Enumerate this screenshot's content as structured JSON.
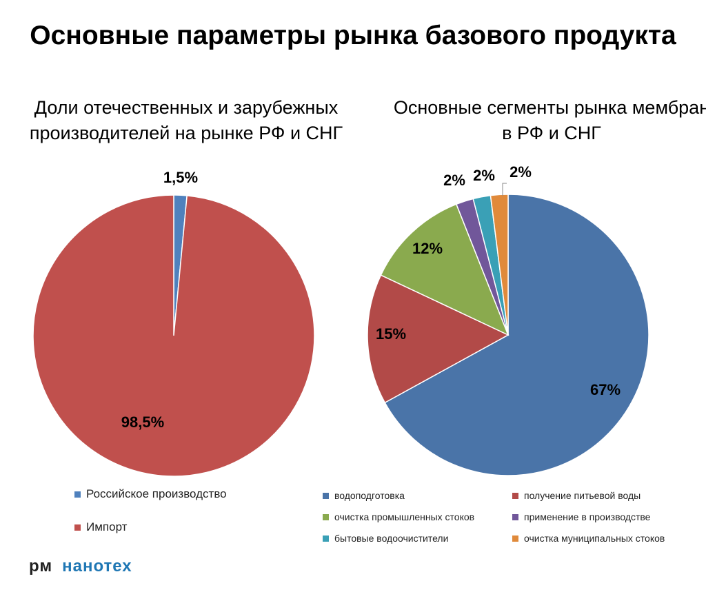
{
  "title": "Основные параметры рынка базового продукта",
  "chart_data": [
    {
      "type": "pie",
      "title": "Доли отечественных и зарубежных производителей на рынке РФ и СНГ",
      "slices": [
        {
          "label": "Российское производство",
          "value": 1.5,
          "display": "1,5%",
          "color": "#4f81bd"
        },
        {
          "label": "Импорт",
          "value": 98.5,
          "display": "98,5%",
          "color": "#c0504d"
        }
      ],
      "legend": "bottom"
    },
    {
      "type": "pie",
      "title": "Основные сегменты рынка мембран в РФ и СНГ",
      "slices": [
        {
          "label": "водоподготовка",
          "value": 67,
          "display": "67%",
          "color": "#4a74a8"
        },
        {
          "label": "получение питьевой воды",
          "value": 15,
          "display": "15%",
          "color": "#b24a48"
        },
        {
          "label": "очистка промышленных стоков",
          "value": 12,
          "display": "12%",
          "color": "#8aaa4e"
        },
        {
          "label": "применение в производстве",
          "value": 2,
          "display": "2%",
          "color": "#71579a"
        },
        {
          "label": "бытовые водоочистители",
          "value": 2,
          "display": "2%",
          "color": "#3aa0b6"
        },
        {
          "label": "очистка муниципальных стоков",
          "value": 2,
          "display": "2%",
          "color": "#e08a3b"
        }
      ],
      "legend": "bottom"
    }
  ],
  "logo": {
    "rm": "рм",
    "nano": "нанотех"
  }
}
